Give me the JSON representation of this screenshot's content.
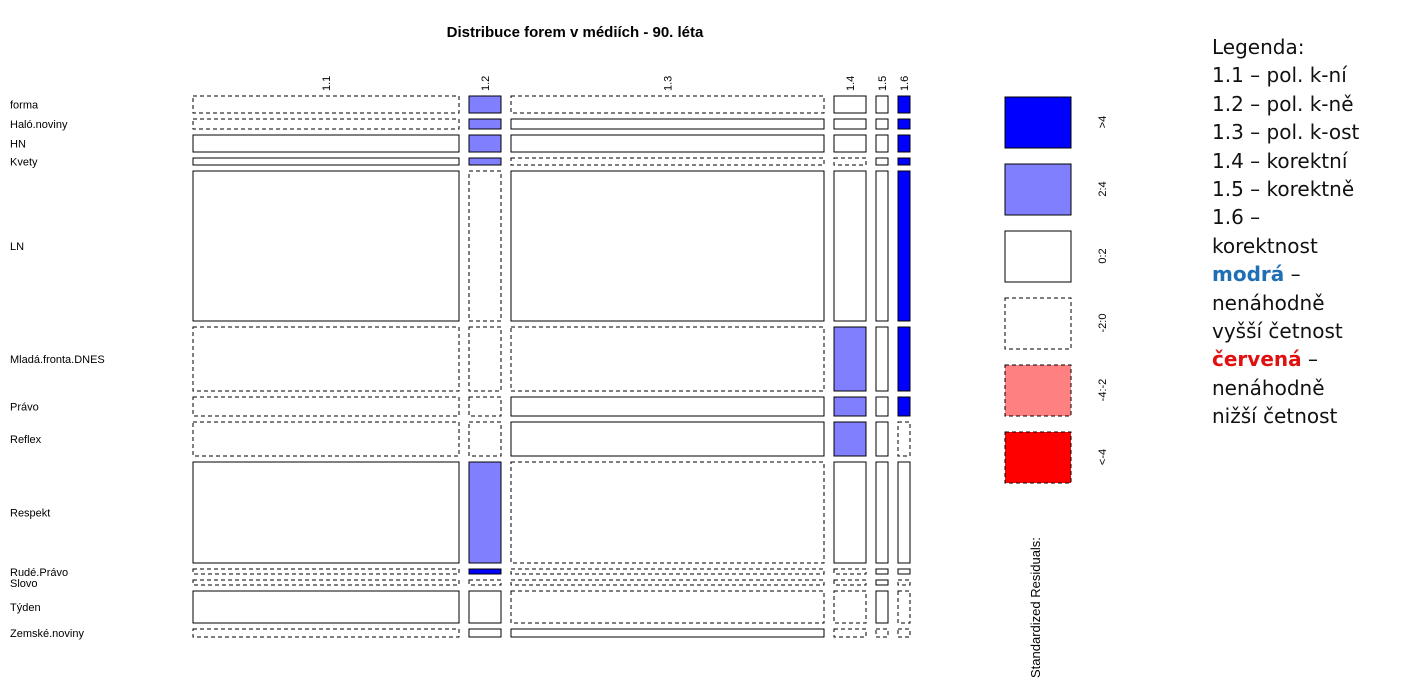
{
  "chart_data": {
    "type": "mosaic",
    "title": "Distribuce forem v médiích - 90. léta",
    "columns": [
      "1.1",
      "1.2",
      "1.3",
      "1.4",
      "1.5",
      "1.6"
    ],
    "column_widths": [
      266,
      32,
      313,
      32,
      12,
      12
    ],
    "rows": [
      {
        "name": "forma",
        "height": 17,
        "cells": [
          "neg",
          "pos24",
          "neg",
          "zero",
          "zero",
          "pos4"
        ]
      },
      {
        "name": "Haló.noviny",
        "height": 10,
        "cells": [
          "neg",
          "pos24",
          "zero",
          "zero",
          "zero",
          "pos4"
        ]
      },
      {
        "name": "HN",
        "height": 17,
        "cells": [
          "zero",
          "pos24",
          "zero",
          "zero",
          "zero",
          "pos4"
        ]
      },
      {
        "name": "Kvety",
        "height": 7,
        "cells": [
          "zero",
          "pos24",
          "neg",
          "neg",
          "zero",
          "pos4"
        ]
      },
      {
        "name": "LN",
        "height": 150,
        "cells": [
          "zero",
          "neg",
          "zero",
          "zero",
          "zero",
          "pos4"
        ]
      },
      {
        "name": "Mladá.fronta.DNES",
        "height": 64,
        "cells": [
          "neg",
          "neg",
          "neg",
          "pos24",
          "zero",
          "pos4"
        ]
      },
      {
        "name": "Právo",
        "height": 19,
        "cells": [
          "neg",
          "neg",
          "zero",
          "pos24",
          "zero",
          "pos4"
        ]
      },
      {
        "name": "Reflex",
        "height": 34,
        "cells": [
          "neg",
          "neg",
          "zero",
          "pos24",
          "zero",
          "neg"
        ]
      },
      {
        "name": "Respekt",
        "height": 101,
        "cells": [
          "zero",
          "pos24",
          "neg",
          "zero",
          "zero",
          "zero"
        ]
      },
      {
        "name": "Rudé.Právo",
        "height": 5,
        "cells": [
          "neg",
          "pos4",
          "neg",
          "neg",
          "zero",
          "zero"
        ]
      },
      {
        "name": "Slovo",
        "height": 5,
        "cells": [
          "neg",
          "neg",
          "neg",
          "neg",
          "zero",
          "neg"
        ]
      },
      {
        "name": "Týden",
        "height": 32,
        "cells": [
          "zero",
          "zero",
          "neg",
          "neg",
          "zero",
          "neg"
        ]
      },
      {
        "name": "Zemské.noviny",
        "height": 8,
        "cells": [
          "neg",
          "zero",
          "zero",
          "neg",
          "neg",
          "neg"
        ]
      }
    ],
    "residual_legend": {
      "label": "Standardized Residuals:",
      "bins": [
        {
          "label": ">4",
          "fill": "#0000ff",
          "line": "solid"
        },
        {
          "label": "2:4",
          "fill": "#8080ff",
          "line": "solid"
        },
        {
          "label": "0:2",
          "fill": "#ffffff",
          "line": "solid"
        },
        {
          "label": "-2:0",
          "fill": "#ffffff",
          "line": "dashed"
        },
        {
          "label": "-4:-2",
          "fill": "#ff8080",
          "line": "dashed"
        },
        {
          "label": "<-4",
          "fill": "#ff0000",
          "line": "dashed"
        }
      ]
    },
    "fills": {
      "pos4": "#0000ff",
      "pos24": "#8080ff",
      "zero": "#ffffff",
      "neg": "#ffffff"
    }
  },
  "text_legend": {
    "heading": "Legenda:",
    "items": [
      "1.1 – pol. k-ní",
      "1.2 – pol. k-ně",
      "1.3 – pol. k-ost",
      "1.4 – korektní",
      "1.5 – korektně",
      "1.6 –",
      "korektnost"
    ],
    "blue_keyword": "modrá",
    "blue_dash": " –",
    "blue_lines": [
      "nenáhodně",
      "vyšší četnost"
    ],
    "red_keyword": "červená",
    "red_dash": " –",
    "red_lines": [
      "nenáhodně",
      "nižší četnost"
    ],
    "colors": {
      "blue_keyword": "#1f6fb4",
      "red_keyword": "#e01010"
    }
  }
}
